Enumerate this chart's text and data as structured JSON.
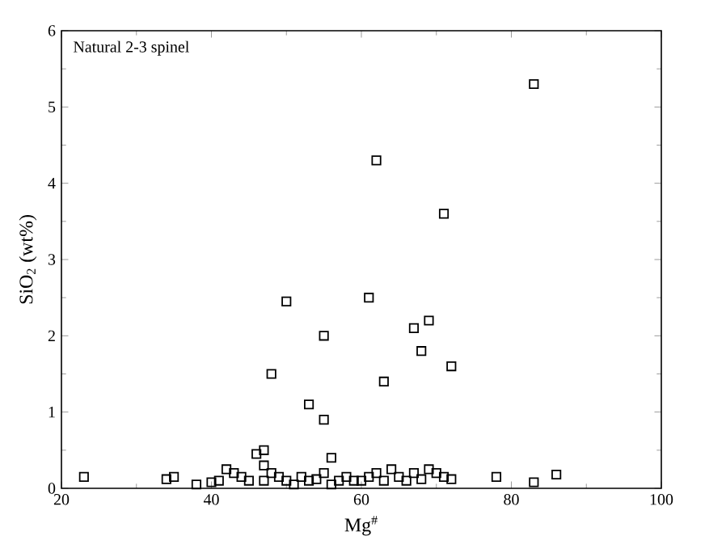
{
  "chart_data": {
    "type": "scatter",
    "xlabel": "Mg$^{#}$",
    "ylabel": "SiO$_{2}$ (wt%)",
    "annotations": [
      "Natural 2-3 spinel"
    ],
    "xlim": [
      20,
      100
    ],
    "ylim": [
      0,
      6
    ],
    "xticks": [
      20,
      40,
      60,
      80,
      100
    ],
    "yticks": [
      0,
      1,
      2,
      3,
      4,
      5,
      6
    ],
    "grid": false,
    "marker": "square",
    "series": [
      {
        "color": "#000000",
        "x": [
          83,
          62,
          71,
          61,
          50,
          69,
          67,
          55,
          68,
          72,
          48,
          63,
          53,
          55,
          56,
          23,
          34,
          35,
          38,
          40,
          41,
          42,
          43,
          44,
          45,
          46,
          47,
          47,
          47,
          48,
          49,
          50,
          51,
          52,
          53,
          54,
          55,
          56,
          57,
          58,
          59,
          60,
          61,
          62,
          63,
          64,
          65,
          66,
          67,
          68,
          69,
          70,
          71,
          72,
          78,
          83,
          86
        ],
        "values": [
          5.3,
          4.3,
          3.6,
          2.5,
          2.45,
          2.2,
          2.1,
          2.0,
          1.8,
          1.6,
          1.5,
          1.4,
          1.1,
          0.9,
          0.4,
          0.15,
          0.12,
          0.15,
          0.05,
          0.08,
          0.1,
          0.25,
          0.2,
          0.15,
          0.1,
          0.45,
          0.5,
          0.3,
          0.1,
          0.2,
          0.15,
          0.1,
          0.05,
          0.15,
          0.1,
          0.12,
          0.2,
          0.05,
          0.1,
          0.15,
          0.1,
          0.1,
          0.15,
          0.2,
          0.1,
          0.25,
          0.15,
          0.1,
          0.2,
          0.12,
          0.25,
          0.2,
          0.15,
          0.12,
          0.15,
          0.08,
          0.18
        ]
      }
    ]
  }
}
